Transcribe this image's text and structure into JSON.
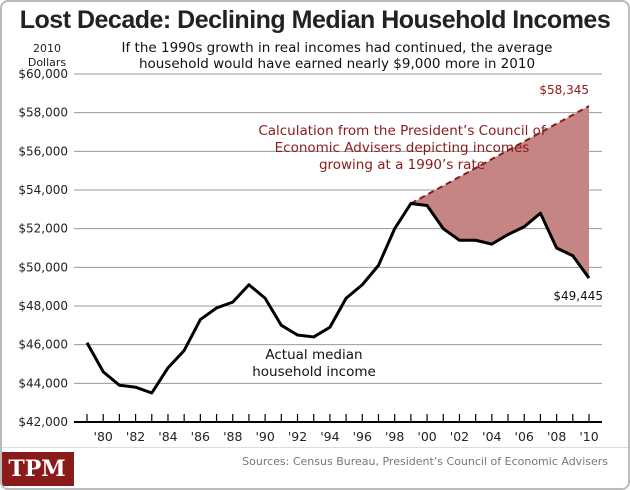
{
  "chart_data": {
    "type": "line",
    "title": "Lost Decade: Declining Median Household Incomes",
    "subtitle": "If the 1990s growth in real incomes had continued, the average household would have earned nearly $9,000 more in 2010",
    "ylabel": "2010 Dollars",
    "ylim": [
      42000,
      60000
    ],
    "xlim": [
      1979,
      2010
    ],
    "yticks": [
      "$42,000",
      "$44,000",
      "$46,000",
      "$48,000",
      "$50,000",
      "$52,000",
      "$54,000",
      "$56,000",
      "$58,000",
      "$60,000"
    ],
    "xticks": [
      "'80",
      "'82",
      "'84",
      "'86",
      "'88",
      "'90",
      "'92",
      "'94",
      "'96",
      "'98",
      "'00",
      "'02",
      "'04",
      "'06",
      "'08",
      "'10"
    ],
    "grid": true,
    "series": [
      {
        "name": "Actual median household income",
        "color": "#000000",
        "x": [
          1979,
          1980,
          1981,
          1982,
          1983,
          1984,
          1985,
          1986,
          1987,
          1988,
          1989,
          1990,
          1991,
          1992,
          1993,
          1994,
          1995,
          1996,
          1997,
          1998,
          1999,
          2000,
          2001,
          2002,
          2003,
          2004,
          2005,
          2006,
          2007,
          2008,
          2009,
          2010
        ],
        "y": [
          46100,
          44600,
          43900,
          43800,
          43500,
          44800,
          45700,
          47300,
          47900,
          48200,
          49100,
          48400,
          47000,
          46500,
          46400,
          46900,
          48400,
          49100,
          50100,
          52000,
          53300,
          53200,
          52000,
          51400,
          51400,
          51200,
          51700,
          52100,
          52800,
          51000,
          50600,
          49445
        ]
      },
      {
        "name": "Calculation from the President's Council of Economic Advisers depicting incomes growing at a 1990's rate",
        "color": "#8b1a1a",
        "fill": "#c58585",
        "x": [
          1999,
          2010
        ],
        "y": [
          53300,
          58345
        ]
      }
    ],
    "annotations": {
      "actual": "Actual median household income",
      "projection": "Calculation from the President’s Council of Economic Advisers depicting incomes growing at a 1990’s rate",
      "end_projected": "$58,345",
      "end_actual": "$49,445"
    },
    "source": "Sources: Census Bureau, President’s Council of Economic Advisers",
    "logo": "TPM"
  }
}
